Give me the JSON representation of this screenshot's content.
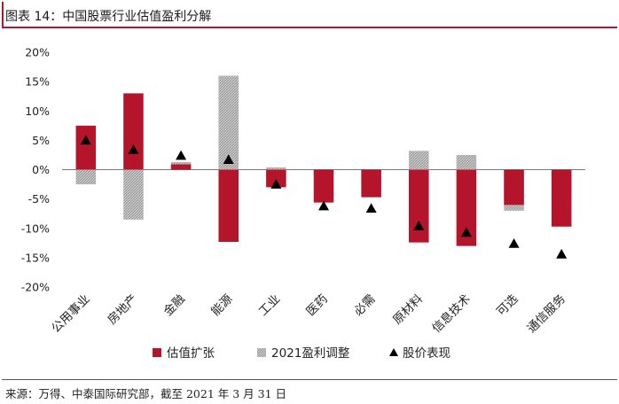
{
  "header": {
    "title": "图表 14：中国股票行业估值盈利分解"
  },
  "footer": {
    "source": "来源：万得、中泰国际研究部，截至 2021 年 3 月 31 日"
  },
  "colors": {
    "valuation": "#b5152b",
    "earnings": "#b3b3b3",
    "price": "#000000",
    "accent": "#a6192e"
  },
  "chart_data": {
    "type": "bar",
    "categories": [
      "公用事业",
      "房地产",
      "金融",
      "能源",
      "工业",
      "医药",
      "必需",
      "原材料",
      "信息技术",
      "可选",
      "通信服务"
    ],
    "series": [
      {
        "name": "估值扩张",
        "kind": "bar",
        "values": [
          7.5,
          13.0,
          0.9,
          -12.3,
          -3.0,
          -5.6,
          -4.7,
          -12.4,
          -13.0,
          -6.0,
          -9.7
        ]
      },
      {
        "name": "2021盈利调整",
        "kind": "bar",
        "values": [
          -2.5,
          -8.5,
          1.3,
          16.0,
          0.4,
          -0.6,
          -1.8,
          3.2,
          2.5,
          -7.0,
          -5.0
        ]
      },
      {
        "name": "股价表现",
        "kind": "marker",
        "values": [
          5.0,
          3.4,
          2.4,
          1.7,
          -2.5,
          -6.2,
          -6.6,
          -9.6,
          -10.7,
          -12.6,
          -14.4
        ]
      }
    ],
    "yticks": [
      "20%",
      "15%",
      "10%",
      "5%",
      "0%",
      "-5%",
      "-10%",
      "-15%",
      "-20%"
    ],
    "ylim": [
      -20,
      20
    ],
    "grid": false,
    "legend": "bottom"
  }
}
